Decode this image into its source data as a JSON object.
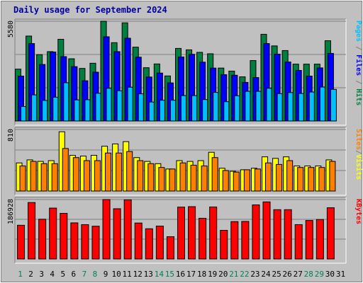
{
  "chart_data": {
    "type": "bar",
    "title": "Daily usage for September 2024",
    "categories": [
      "1",
      "2",
      "3",
      "4",
      "5",
      "6",
      "7",
      "8",
      "9",
      "10",
      "11",
      "12",
      "13",
      "14",
      "15",
      "16",
      "17",
      "18",
      "19",
      "20",
      "21",
      "22",
      "23",
      "24",
      "25",
      "26",
      "27",
      "28",
      "29",
      "30",
      "31"
    ],
    "weekend_days": [
      "1",
      "7",
      "8",
      "14",
      "15",
      "21",
      "22",
      "28",
      "29"
    ],
    "panels": [
      {
        "id": "hits",
        "max_label": "5580",
        "ymax": 5580,
        "right_labels": [
          {
            "text": "Hits",
            "color": "#008040"
          },
          {
            "text": "Files",
            "color": "#0000ff"
          },
          {
            "text": "Pages",
            "color": "#00c0ff"
          }
        ],
        "series": [
          {
            "name": "Hits",
            "color": "#008040",
            "values": [
              2900,
              4750,
              3710,
              3880,
              4570,
              3480,
              2940,
              3230,
              5580,
              4380,
              5490,
              4130,
              2980,
              3190,
              2520,
              4060,
              3980,
              3840,
              3760,
              2960,
              2790,
              2470,
              3380,
              4850,
              4200,
              3940,
              3180,
              3180,
              3180,
              4490,
              0
            ]
          },
          {
            "name": "Files",
            "color": "#0000ff",
            "values": [
              2510,
              4330,
              3160,
              3860,
              3600,
              3040,
              2250,
              2730,
              4710,
              3880,
              4630,
              3570,
              2460,
              2680,
              2130,
              3580,
              3730,
              3290,
              2960,
              2590,
              2560,
              2160,
              2430,
              4330,
              3740,
              3300,
              2830,
              2510,
              2970,
              3780,
              0
            ]
          },
          {
            "name": "Pages",
            "color": "#00c0ff",
            "values": [
              810,
              1460,
              1150,
              1330,
              2140,
              1180,
              1190,
              1550,
              1830,
              1690,
              1890,
              1520,
              1060,
              1160,
              1160,
              1420,
              1420,
              1200,
              1600,
              1080,
              1410,
              1660,
              1660,
              1830,
              1530,
              1590,
              1540,
              1620,
              1900,
              1770,
              0
            ]
          }
        ]
      },
      {
        "id": "visits",
        "max_label": "810",
        "ymax": 810,
        "right_labels": [
          {
            "text": "Visits",
            "color": "#ffff00"
          },
          {
            "text": "/",
            "color": "#808080"
          },
          {
            "text": "Sites",
            "color": "#ff8000"
          }
        ],
        "series": [
          {
            "name": "Visits",
            "color": "#ffff00",
            "values": [
              370,
              410,
              390,
              400,
              780,
              470,
              460,
              470,
              590,
              620,
              650,
              440,
              390,
              360,
              290,
              400,
              390,
              400,
              510,
              300,
              260,
              280,
              300,
              450,
              430,
              450,
              330,
              330,
              330,
              410,
              0
            ]
          },
          {
            "name": "Sites",
            "color": "#ff8000",
            "values": [
              330,
              390,
              360,
              360,
              560,
              440,
              400,
              400,
              500,
              500,
              520,
              400,
              360,
              310,
              290,
              370,
              340,
              330,
              440,
              270,
              250,
              280,
              290,
              370,
              350,
              400,
              310,
              310,
              310,
              390,
              0
            ]
          }
        ]
      },
      {
        "id": "kbytes",
        "max_label": "186928",
        "ymax": 186928,
        "right_labels": [
          {
            "text": "KBytes",
            "color": "#ff0000"
          }
        ],
        "series": [
          {
            "name": "KBytes",
            "color": "#ff0000",
            "values": [
              106000,
              177500,
              125000,
              160000,
              143500,
              113500,
              108000,
              103000,
              186900,
              158000,
              186000,
              113000,
              95000,
              103500,
              70000,
              163000,
              164500,
              128000,
              163500,
              90000,
              117500,
              118000,
              170000,
              179500,
              155000,
              155000,
              108000,
              121000,
              124000,
              161000,
              0
            ]
          }
        ]
      }
    ]
  }
}
